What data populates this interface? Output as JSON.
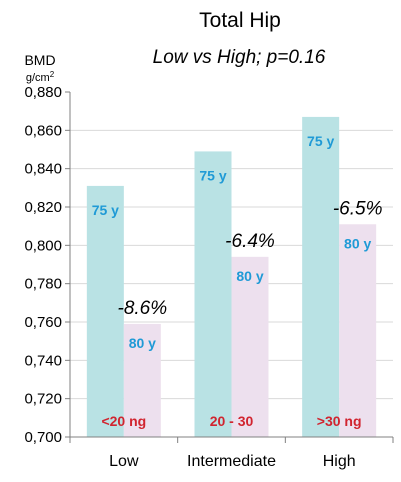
{
  "chart_data": {
    "type": "bar",
    "title": "Total Hip",
    "subtitle": "Low vs High; p=0.16",
    "ylabel": "BMD",
    "yunit_base": "g/cm",
    "yunit_exp": "2",
    "ylim": [
      0.7,
      0.88
    ],
    "ytick_labels": [
      "0,880",
      "0,860",
      "0,840",
      "0,820",
      "0,800",
      "0,780",
      "0,760",
      "0,740",
      "0,720",
      "0,700"
    ],
    "grid": "horizontal",
    "categories": [
      "Low",
      "Intermediate",
      "High"
    ],
    "group_notes": [
      "<20 ng",
      "20 - 30",
      ">30 ng"
    ],
    "series": [
      {
        "name": "75 y",
        "color": "#b9e2e4",
        "values": [
          0.831,
          0.849,
          0.867
        ],
        "labels": [
          "75 y",
          "75 y",
          "75 y"
        ]
      },
      {
        "name": "80 y",
        "color": "#ede0ee",
        "values": [
          0.759,
          0.794,
          0.811
        ],
        "labels": [
          "80 y",
          "80 y",
          "80 y"
        ]
      }
    ],
    "change_labels": [
      "-8.6%",
      "-6.4%",
      "-6.5%"
    ],
    "colors": {
      "axis": "#808080",
      "grid": "#d9d9d9",
      "age_text": "#1f9ad6",
      "note_text": "#d1242f"
    }
  }
}
